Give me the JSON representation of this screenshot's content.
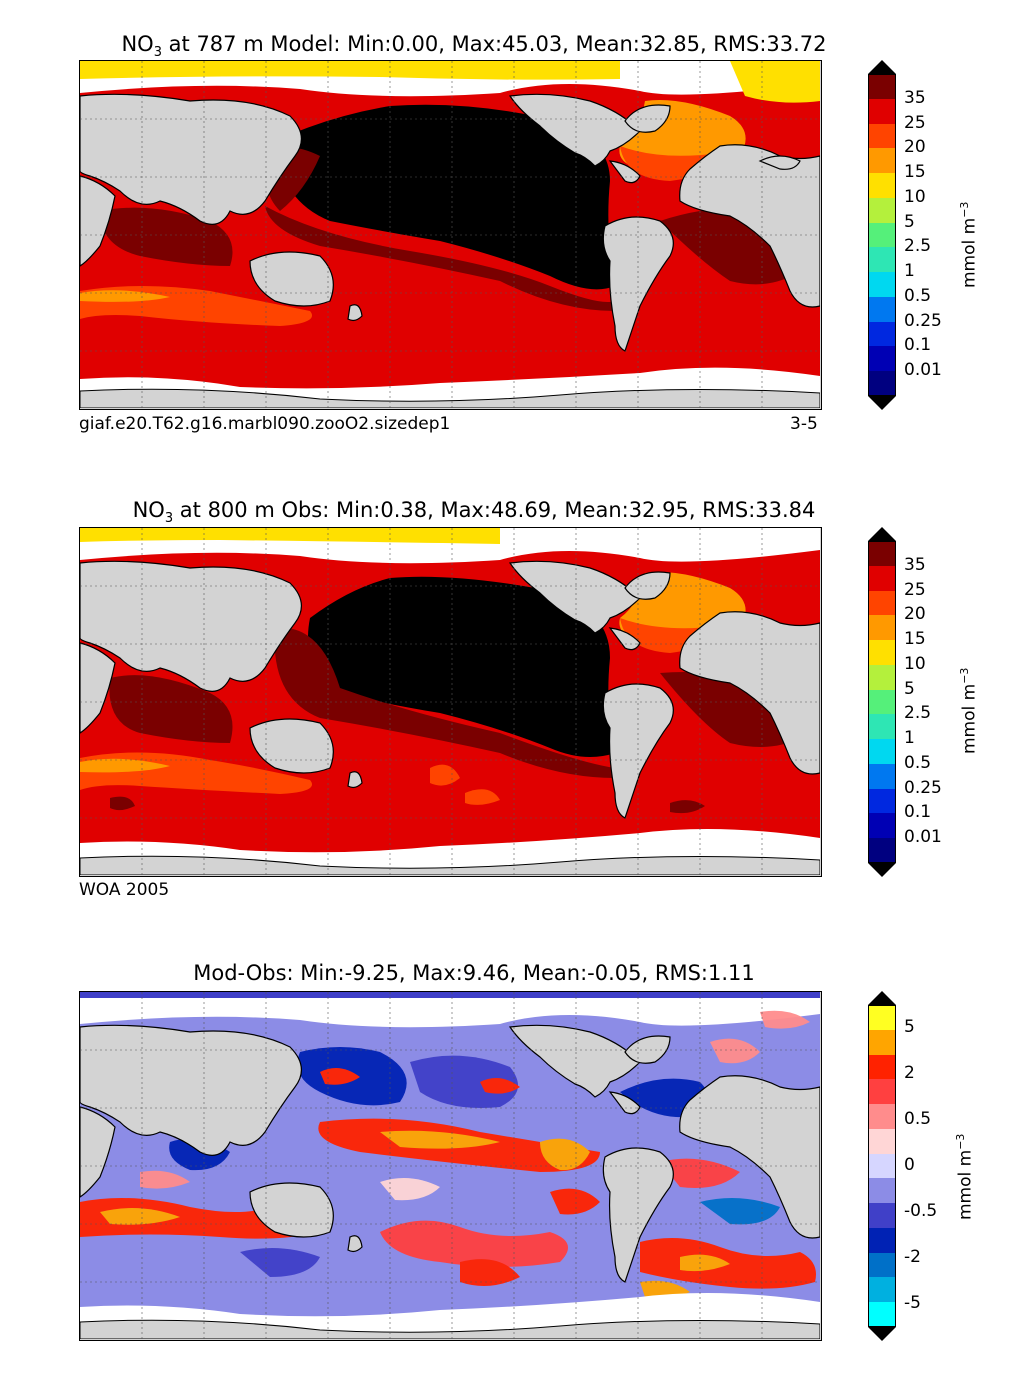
{
  "panels": [
    {
      "id": "model",
      "title_pre": "NO",
      "title_sub": "3",
      "title_post": " at 787 m Model: Min:0.00, Max:45.03, Mean:32.85, RMS:33.72",
      "caption_left": "giaf.e20.T62.g16.marbl090.zooO2.sizedep1",
      "caption_right": "3-5",
      "units_text": "mmol m",
      "units_sup": "−3",
      "colorbar": {
        "labels": [
          "35",
          "25",
          "20",
          "15",
          "10",
          "5",
          "2.5",
          "1",
          "0.5",
          "0.25",
          "0.1",
          "0.01"
        ],
        "colors": [
          "#7a0000",
          "#e00000",
          "#ff4400",
          "#ff9900",
          "#ffe000",
          "#b4f03c",
          "#55f07a",
          "#2ee6b4",
          "#00d8f0",
          "#0078f0",
          "#0028e0",
          "#0000b4",
          "#000080"
        ],
        "over_color": "#000000",
        "under_color": "#000000"
      }
    },
    {
      "id": "obs",
      "title_pre": "NO",
      "title_sub": "3",
      "title_post": " at 800 m Obs: Min:0.38, Max:48.69, Mean:32.95, RMS:33.84",
      "caption_left": "WOA 2005",
      "caption_right": "",
      "units_text": "mmol m",
      "units_sup": "−3",
      "colorbar": {
        "labels": [
          "35",
          "25",
          "20",
          "15",
          "10",
          "5",
          "2.5",
          "1",
          "0.5",
          "0.25",
          "0.1",
          "0.01"
        ],
        "colors": [
          "#7a0000",
          "#e00000",
          "#ff4400",
          "#ff9900",
          "#ffe000",
          "#b4f03c",
          "#55f07a",
          "#2ee6b4",
          "#00d8f0",
          "#0078f0",
          "#0028e0",
          "#0000b4",
          "#000080"
        ],
        "over_color": "#000000",
        "under_color": "#000000"
      }
    },
    {
      "id": "diff",
      "title_pre": "Mod-Obs: Min:-9.25, Max:9.46, Mean:-0.05, RMS:1.11",
      "title_sub": "",
      "title_post": "",
      "caption_left": "",
      "caption_right": "",
      "units_text": "mmol m",
      "units_sup": "−3",
      "colorbar": {
        "labels": [
          "5",
          "2",
          "0.5",
          "0",
          "-0.5",
          "-2",
          "-5"
        ],
        "colors": [
          "#ffff22",
          "#ffa500",
          "#ff2200",
          "#ff4040",
          "#ff8c8c",
          "#ffd6d6",
          "#d6d6ff",
          "#8c8ce6",
          "#4040c8",
          "#0022b4",
          "#0070c8",
          "#00b0e0",
          "#00ffff"
        ],
        "over_color": "#000000",
        "under_color": "#000000"
      }
    }
  ]
}
